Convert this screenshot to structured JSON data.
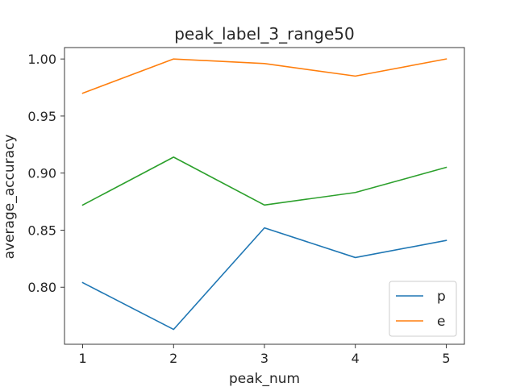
{
  "chart_data": {
    "type": "line",
    "title": "peak_label_3_range50",
    "xlabel": "peak_num",
    "ylabel": "average_accuracy",
    "x": [
      1,
      2,
      3,
      4,
      5
    ],
    "xticks": [
      "1",
      "2",
      "3",
      "4",
      "5"
    ],
    "xlim": [
      0.8,
      5.2
    ],
    "ylim": [
      0.75,
      1.01
    ],
    "yticks": [
      "0.80",
      "0.85",
      "0.90",
      "0.95",
      "1.00"
    ],
    "ytick_values": [
      0.8,
      0.85,
      0.9,
      0.95,
      1.0
    ],
    "grid": false,
    "legend_position": "lower right",
    "series": [
      {
        "name": "p",
        "color": "#1f77b4",
        "values": [
          0.804,
          0.763,
          0.852,
          0.826,
          0.841
        ]
      },
      {
        "name": "e",
        "color": "#ff7f0e",
        "values": [
          0.97,
          1.0,
          0.996,
          0.985,
          1.0
        ]
      },
      {
        "color": "#2ca02c",
        "values": [
          0.872,
          0.914,
          0.872,
          0.883,
          0.905
        ]
      }
    ],
    "legend": [
      "p",
      "e"
    ]
  }
}
